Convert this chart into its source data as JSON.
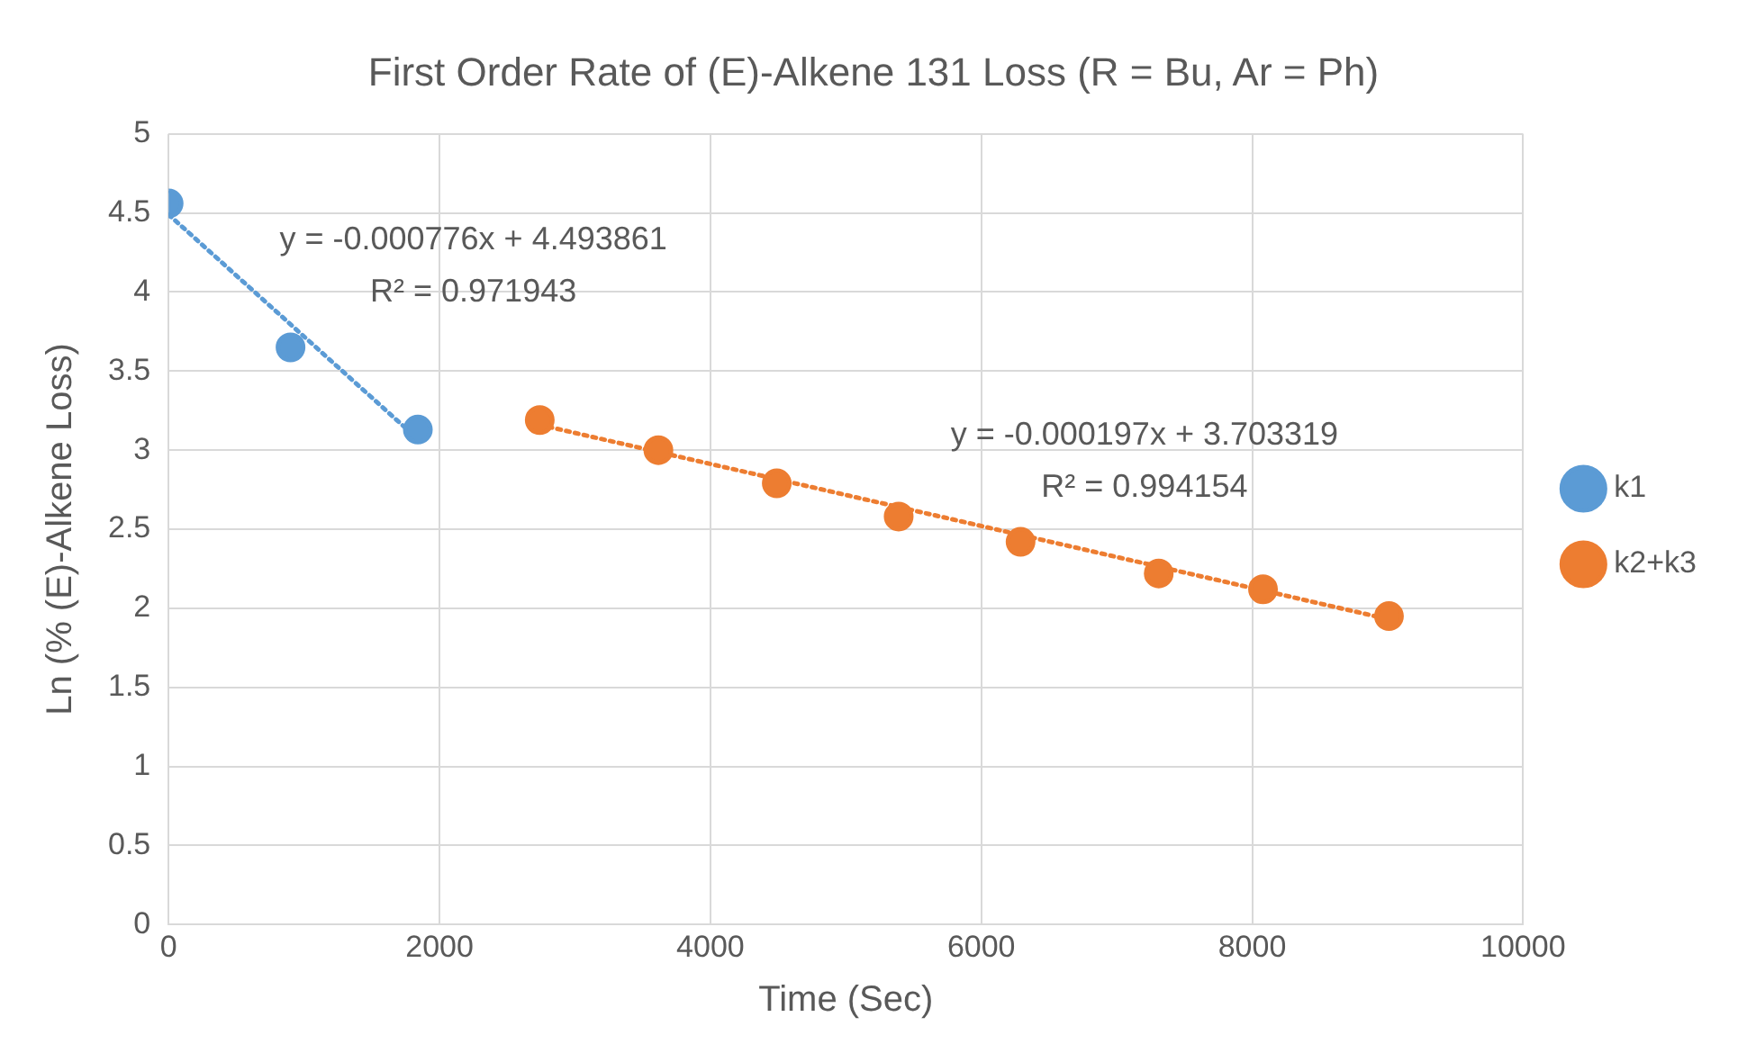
{
  "chart_data": {
    "type": "scatter",
    "title": "First Order Rate of (E)-Alkene 131 Loss (R = Bu, Ar = Ph)",
    "xlabel": "Time (Sec)",
    "ylabel": "Ln (% (E)-Alkene Loss)",
    "xlim": [
      0,
      10000
    ],
    "xticks": [
      0,
      2000,
      4000,
      6000,
      8000,
      10000
    ],
    "ylim": [
      0,
      5
    ],
    "yticks": [
      0,
      0.5,
      1,
      1.5,
      2,
      2.5,
      3,
      3.5,
      4,
      4.5,
      5
    ],
    "grid": true,
    "legend": "right",
    "marker": "circle",
    "series": [
      {
        "name": "k1",
        "color": "#5b9bd5",
        "x": [
          0,
          900,
          1840
        ],
        "values": [
          4.56,
          3.65,
          3.13
        ]
      },
      {
        "name": "k2+k3",
        "color": "#ed7d31",
        "x": [
          2740,
          3616,
          4490,
          5390,
          6290,
          7310,
          8080,
          9010
        ],
        "values": [
          3.19,
          3.0,
          2.79,
          2.58,
          2.42,
          2.22,
          2.12,
          1.95
        ]
      },
      {
        "type": "line",
        "color": "#5b9bd5",
        "line_style": "dotted",
        "marker": "none",
        "x": [
          0,
          1840
        ],
        "values": [
          4.49,
          3.07
        ]
      },
      {
        "type": "line",
        "color": "#ed7d31",
        "line_style": "dotted",
        "marker": "none",
        "x": [
          2740,
          9010
        ],
        "values": [
          3.16,
          1.93
        ]
      }
    ],
    "annotations": [
      "y = -0.000776x + 4.493861",
      "R² = 0.971943",
      "y = -0.000197x + 3.703319",
      "R² = 0.994154"
    ]
  }
}
